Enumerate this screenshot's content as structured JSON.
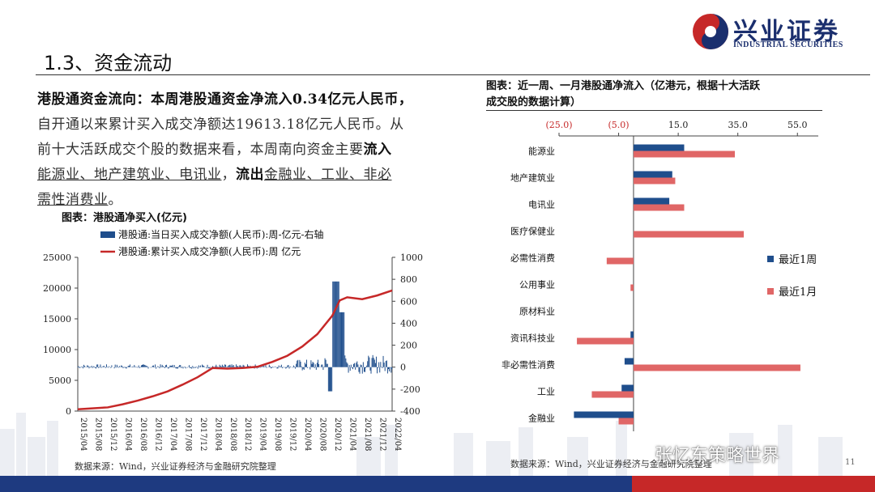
{
  "logo": {
    "name": "兴业证券",
    "sub": "INDUSTRIAL SECURITIES"
  },
  "page": {
    "title": "1.3、资金流动",
    "page_number": "11"
  },
  "paragraph": {
    "lead": "港股通资金流向：本周港股通资金净流入0.34亿元人民币，",
    "line2": "自开通以来累计买入成交净额达19613.18亿元人民币。从",
    "line3a": "前十大活跃成交个股的数据来看，本周南向资金主要",
    "inflow_word": "流入",
    "inflow_sectors": "能源业、地产建筑业、电讯业",
    "comma": "，",
    "outflow_word": "流出",
    "outflow_sectors_a": "金融业、工业、非必",
    "outflow_sectors_b": "需性消费业",
    "end": "。"
  },
  "left_chart": {
    "caption": "图表：港股通净买入(亿元)",
    "source": "数据来源：Wind，兴业证券经济与金融研究院整理"
  },
  "right_chart": {
    "caption_line1": "图表：近一周、一月港股通净流入（亿港元，根据十大活跃",
    "caption_line2": "成交股的数据计算）",
    "source": "数据来源：Wind，兴业证券经济与金融研究院整理"
  },
  "watermark": "张忆东策略世界",
  "colors": {
    "navy": "#1f4e8c",
    "red": "#c62828",
    "pink": "#e06666",
    "brand": "#1b2f6e"
  },
  "chart_data": [
    {
      "type": "line",
      "title": "",
      "series": [
        {
          "name": "港股通:当日买入成交净额(人民币):周-亿元-右轴",
          "kind": "bar",
          "axis": "right"
        },
        {
          "name": "港股通:累计买入成交净额(人民币):周 亿元",
          "kind": "line",
          "axis": "left"
        }
      ],
      "x_ticks": [
        "2015/04",
        "2015/08",
        "2015/12",
        "2016/04",
        "2016/08",
        "2016/12",
        "2017/04",
        "2017/08",
        "2017/12",
        "2018/04",
        "2018/08",
        "2018/12",
        "2019/04",
        "2019/08",
        "2019/12",
        "2020/04",
        "2020/08",
        "2020/12",
        "2021/04",
        "2021/08",
        "2021/12",
        "2022/04"
      ],
      "y_left_ticks": [
        "0",
        "5000",
        "10000",
        "15000",
        "20000",
        "25000"
      ],
      "y_right_ticks": [
        "-400",
        "-200",
        "0",
        "200",
        "400",
        "600",
        "800",
        "1000"
      ],
      "ylim_left": [
        0,
        25000
      ],
      "ylim_right": [
        -400,
        1000
      ],
      "cumulative": [
        {
          "x": "2015/04",
          "y": 300
        },
        {
          "x": "2015/12",
          "y": 600
        },
        {
          "x": "2016/04",
          "y": 1100
        },
        {
          "x": "2016/08",
          "y": 1700
        },
        {
          "x": "2016/12",
          "y": 2400
        },
        {
          "x": "2017/04",
          "y": 3200
        },
        {
          "x": "2017/08",
          "y": 4300
        },
        {
          "x": "2017/12",
          "y": 5500
        },
        {
          "x": "2018/04",
          "y": 7000
        },
        {
          "x": "2018/08",
          "y": 6900
        },
        {
          "x": "2018/12",
          "y": 7000
        },
        {
          "x": "2019/04",
          "y": 7200
        },
        {
          "x": "2019/08",
          "y": 8000
        },
        {
          "x": "2019/12",
          "y": 9000
        },
        {
          "x": "2020/04",
          "y": 10500
        },
        {
          "x": "2020/08",
          "y": 12500
        },
        {
          "x": "2020/12",
          "y": 15500
        },
        {
          "x": "2021/02",
          "y": 18000
        },
        {
          "x": "2021/04",
          "y": 18500
        },
        {
          "x": "2021/08",
          "y": 18200
        },
        {
          "x": "2021/12",
          "y": 18800
        },
        {
          "x": "2022/04",
          "y": 19613.18
        }
      ]
    },
    {
      "type": "bar",
      "orientation": "horizontal",
      "categories": [
        "能源业",
        "地产建筑业",
        "电讯业",
        "医疗保健业",
        "必需性消费",
        "公用事业",
        "原材料业",
        "资讯科技业",
        "非必需性消费",
        "工业",
        "金融业"
      ],
      "series": [
        {
          "name": "最近1周",
          "color": "#1f4e8c",
          "values": [
            17,
            13,
            12,
            0,
            0,
            0,
            0,
            -1,
            -3,
            -4,
            -20
          ]
        },
        {
          "name": "最近1月",
          "color": "#e06666",
          "values": [
            34,
            14,
            17,
            37,
            -9,
            -1,
            0,
            -19,
            56,
            -14,
            -5
          ]
        }
      ],
      "x_ticks": [
        "(25.0)",
        "(5.0)",
        "15.0",
        "35.0",
        "55.0"
      ],
      "xlim": [
        -25,
        62
      ],
      "legend": "right"
    }
  ]
}
